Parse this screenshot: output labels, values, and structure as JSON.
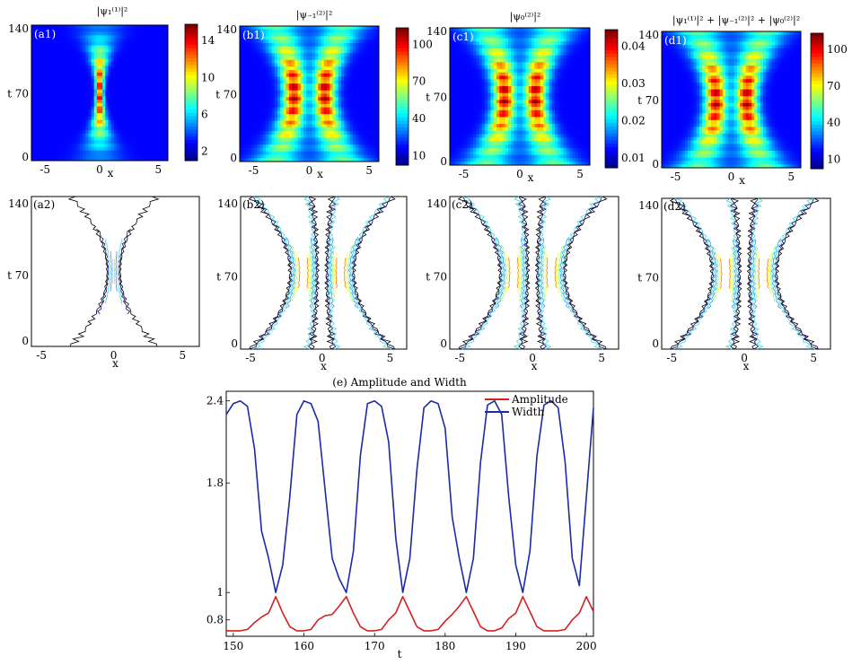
{
  "colors": {
    "jet": [
      "#00008f",
      "#0000ff",
      "#00ffff",
      "#ffff00",
      "#ff0000",
      "#800000"
    ],
    "amplitude": "#d42020",
    "width": "#1a2aa8",
    "contour": [
      "#000000",
      "#0a0a6a",
      "#40d8d8",
      "#20a0ff",
      "#7fff7f",
      "#ffff30",
      "#ff8000",
      "#c00000"
    ]
  },
  "xlabel": "x",
  "ylabel": "t",
  "density_panels": [
    {
      "id": "a1",
      "label": "(a1)",
      "title": "|ψ₁⁽¹⁾|²",
      "cbar_ticks": [
        "14",
        "10",
        "6",
        "2"
      ],
      "yticks": [
        "140",
        "70",
        "0"
      ],
      "xticks": [
        "-5",
        "0",
        "5"
      ],
      "pattern": "single"
    },
    {
      "id": "b1",
      "label": "(b1)",
      "title": "|ψ₋₁⁽²⁾|²",
      "cbar_ticks": [
        "100",
        "70",
        "40",
        "10"
      ],
      "yticks": [
        "140",
        "70",
        "0"
      ],
      "xticks": [
        "-5",
        "0",
        "5"
      ],
      "pattern": "double"
    },
    {
      "id": "c1",
      "label": "(c1)",
      "title": "|ψ₀⁽²⁾|²",
      "cbar_ticks": [
        "0.04",
        "0.03",
        "0.02",
        "0.01"
      ],
      "yticks": [
        "140",
        "70",
        "0"
      ],
      "xticks": [
        "-5",
        "0",
        "5"
      ],
      "pattern": "double"
    },
    {
      "id": "d1",
      "label": "(d1)",
      "title": "|ψ₁⁽¹⁾|² + |ψ₋₁⁽²⁾|² + |ψ₀⁽²⁾|²",
      "cbar_ticks": [
        "100",
        "70",
        "40",
        "10"
      ],
      "yticks": [
        "140",
        "70",
        "0"
      ],
      "xticks": [
        "-5",
        "0",
        "5"
      ],
      "pattern": "double"
    }
  ],
  "contour_panels": [
    {
      "id": "a2",
      "label": "(a2)",
      "yticks": [
        "140",
        "70",
        "0"
      ],
      "xticks": [
        "-5",
        "0",
        "5"
      ],
      "pattern": "single"
    },
    {
      "id": "b2",
      "label": "(b2)",
      "yticks": [
        "140",
        "70",
        "0"
      ],
      "xticks": [
        "-5",
        "0",
        "5"
      ],
      "pattern": "double"
    },
    {
      "id": "c2",
      "label": "(c2)",
      "yticks": [
        "140",
        "70",
        "0"
      ],
      "xticks": [
        "-5",
        "0",
        "5"
      ],
      "pattern": "double"
    },
    {
      "id": "d2",
      "label": "(d2)",
      "yticks": [
        "140",
        "70",
        "0"
      ],
      "xticks": [
        "-5",
        "0",
        "5"
      ],
      "pattern": "double"
    }
  ],
  "chart_data": {
    "type": "line",
    "title": "(e)   Amplitude and Width",
    "xlabel": "t",
    "ylabel": "",
    "xlim": [
      149,
      201
    ],
    "ylim": [
      0.68,
      2.47
    ],
    "xticks": [
      "150",
      "160",
      "170",
      "180",
      "190",
      "200"
    ],
    "yticks": [
      "2.4",
      "1.8",
      "1",
      "0.8"
    ],
    "legend_position": "top-right",
    "series": [
      {
        "name": "Amplitude",
        "color": "#d42020",
        "x": [
          149,
          150,
          151,
          152,
          153,
          154,
          155,
          156,
          157,
          158,
          159,
          160,
          161,
          162,
          163,
          164,
          165,
          166,
          167,
          168,
          169,
          170,
          171,
          172,
          173,
          174,
          175,
          176,
          177,
          178,
          179,
          180,
          181,
          182,
          183,
          184,
          185,
          186,
          187,
          188,
          189,
          190,
          191,
          192,
          193,
          194,
          195,
          196,
          197,
          198,
          199,
          200,
          201
        ],
        "y": [
          0.72,
          0.72,
          0.72,
          0.73,
          0.78,
          0.82,
          0.85,
          0.97,
          0.85,
          0.75,
          0.72,
          0.72,
          0.73,
          0.8,
          0.83,
          0.84,
          0.9,
          0.97,
          0.85,
          0.75,
          0.72,
          0.72,
          0.73,
          0.8,
          0.85,
          0.97,
          0.86,
          0.75,
          0.72,
          0.72,
          0.73,
          0.79,
          0.84,
          0.9,
          0.97,
          0.86,
          0.75,
          0.72,
          0.72,
          0.74,
          0.81,
          0.85,
          0.97,
          0.86,
          0.75,
          0.72,
          0.72,
          0.72,
          0.73,
          0.8,
          0.85,
          0.97,
          0.86
        ]
      },
      {
        "name": "Width",
        "color": "#1a2aa8",
        "x": [
          149,
          150,
          151,
          152,
          153,
          154,
          155,
          156,
          157,
          158,
          159,
          160,
          161,
          162,
          163,
          164,
          165,
          166,
          167,
          168,
          169,
          170,
          171,
          172,
          173,
          174,
          175,
          176,
          177,
          178,
          179,
          180,
          181,
          182,
          183,
          184,
          185,
          186,
          187,
          188,
          189,
          190,
          191,
          192,
          193,
          194,
          195,
          196,
          197,
          198,
          199,
          200,
          201
        ],
        "y": [
          2.3,
          2.38,
          2.4,
          2.36,
          2.05,
          1.45,
          1.25,
          1.0,
          1.2,
          1.7,
          2.3,
          2.4,
          2.38,
          2.25,
          1.75,
          1.25,
          1.1,
          1.0,
          1.3,
          2.0,
          2.38,
          2.4,
          2.36,
          2.1,
          1.4,
          1.0,
          1.25,
          1.9,
          2.35,
          2.4,
          2.38,
          2.2,
          1.55,
          1.25,
          1.0,
          1.25,
          1.95,
          2.37,
          2.4,
          2.3,
          1.7,
          1.2,
          1.0,
          1.3,
          2.0,
          2.37,
          2.4,
          2.35,
          1.95,
          1.25,
          1.05,
          1.7,
          2.35
        ]
      }
    ]
  }
}
